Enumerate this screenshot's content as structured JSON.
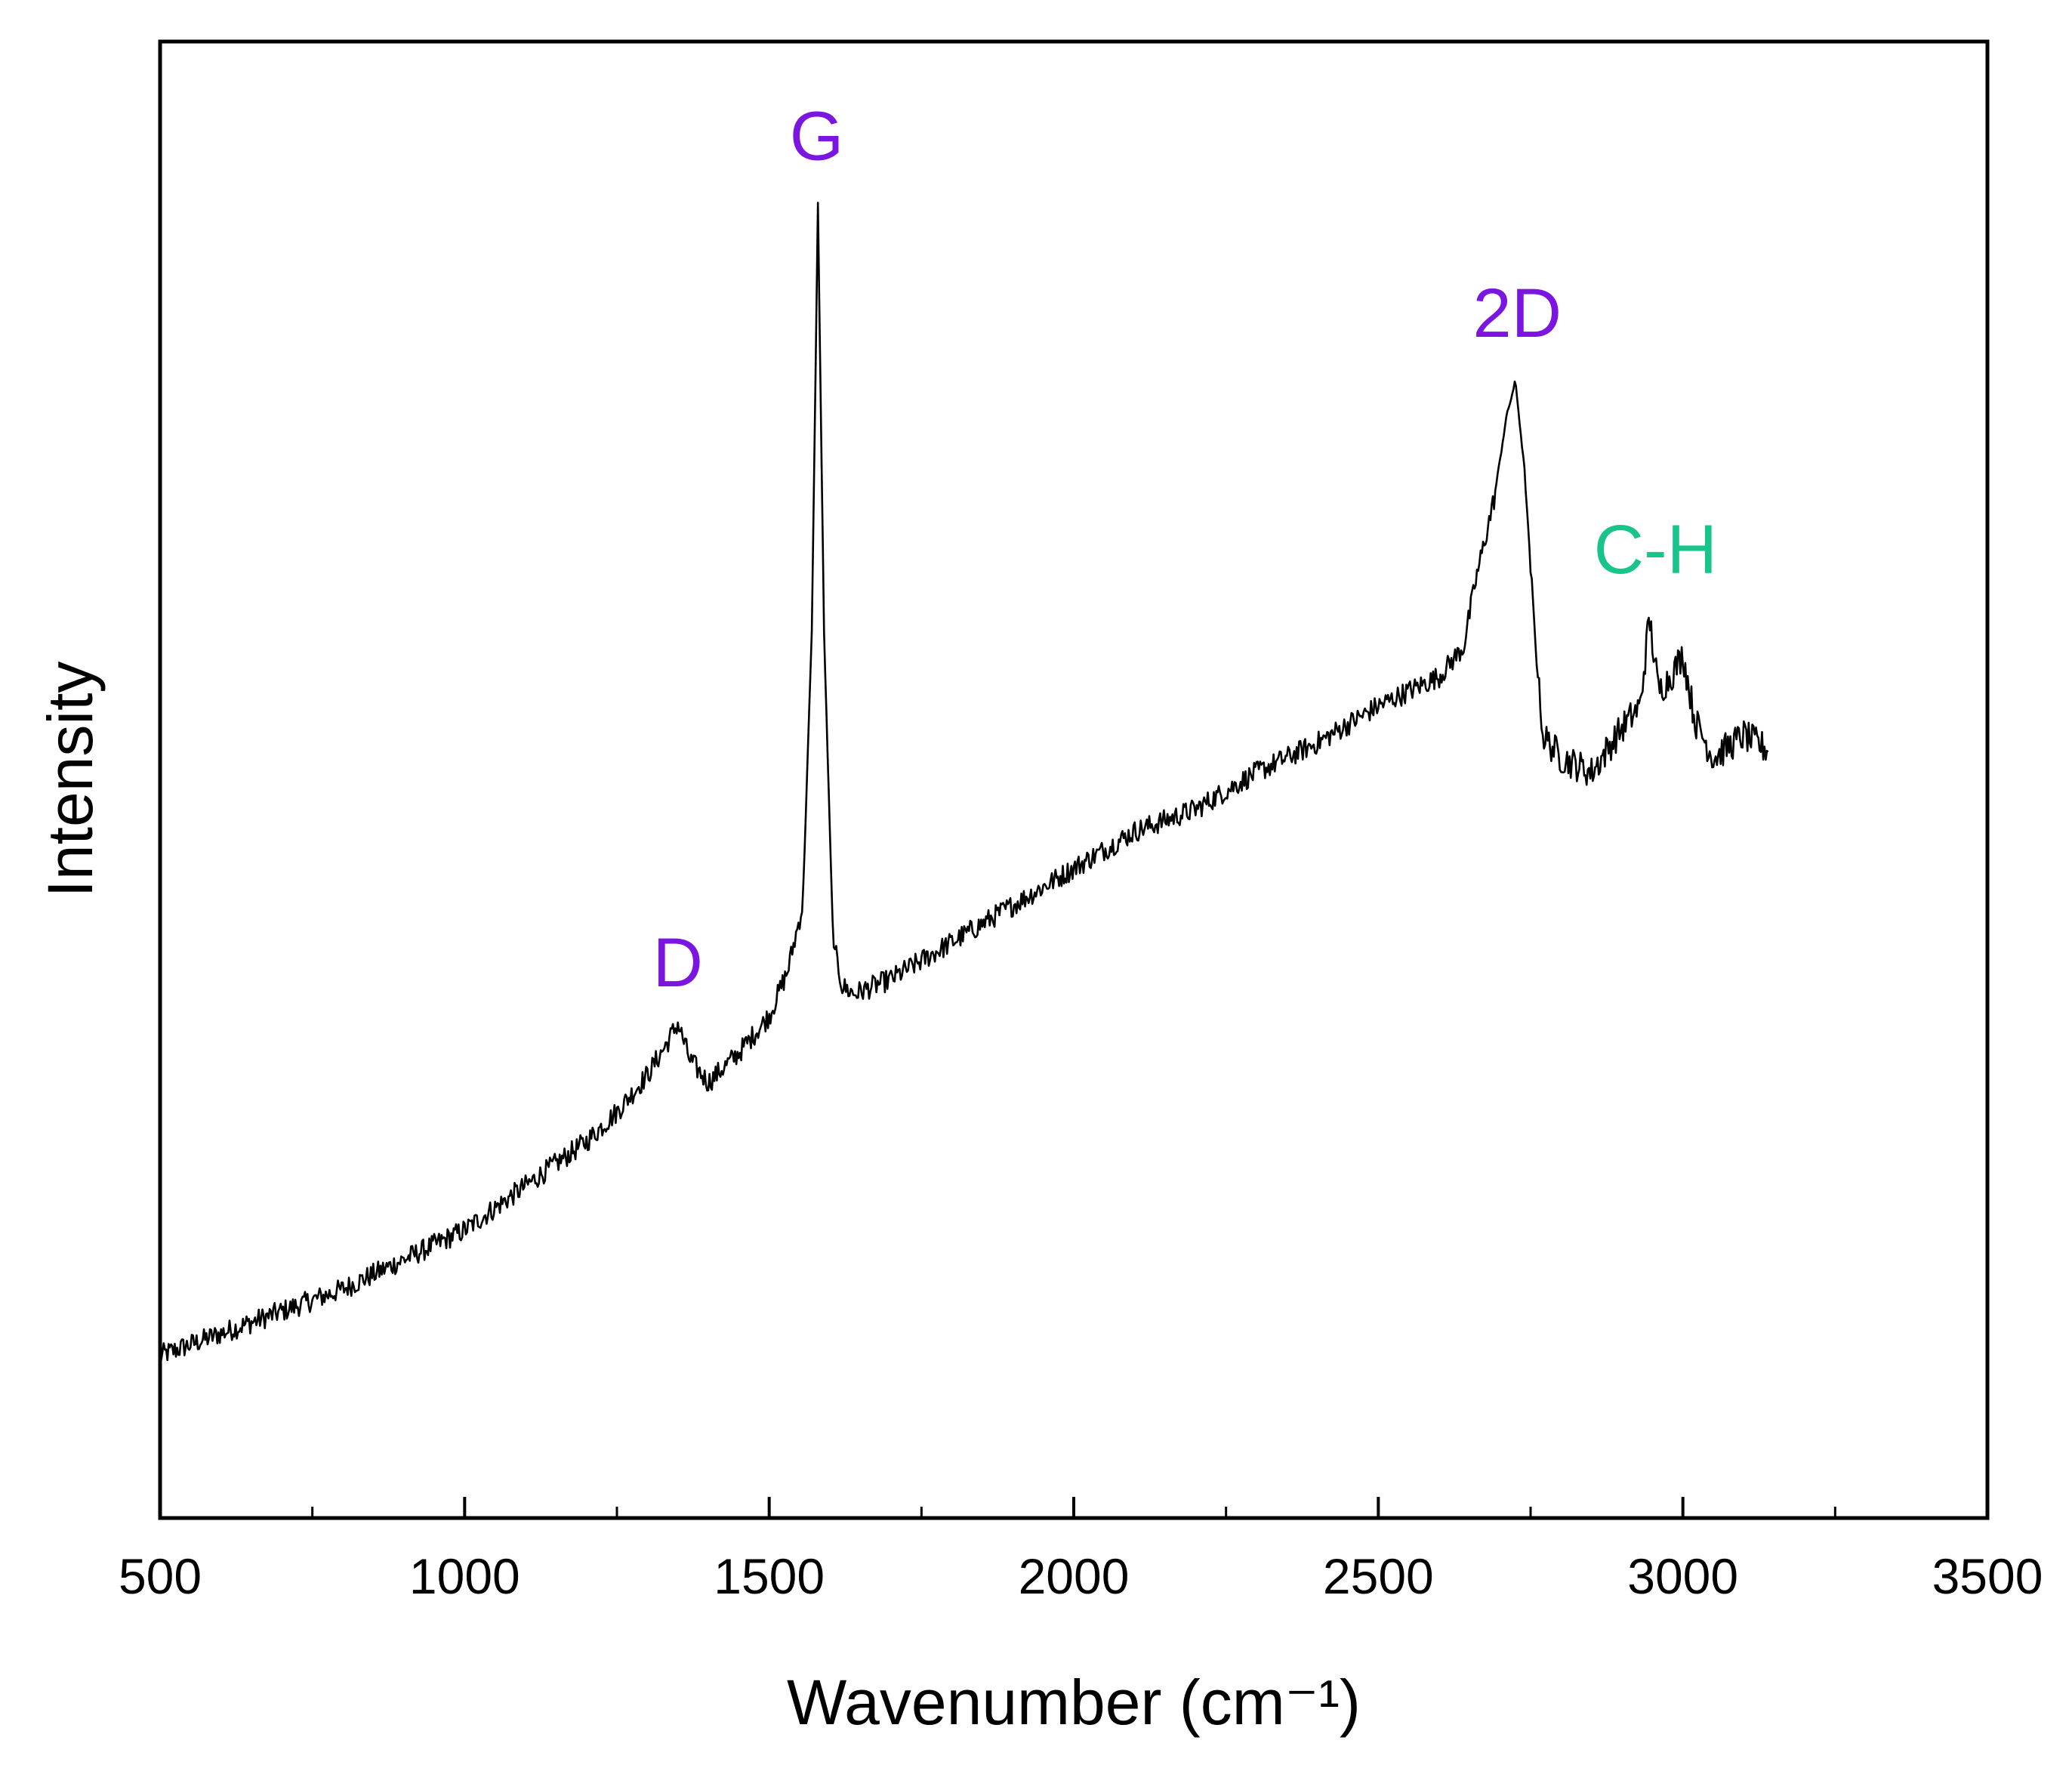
{
  "chart_data": {
    "type": "line",
    "title": "",
    "xlabel": "Wavenumber (cm⁻¹)",
    "ylabel": "Intensity",
    "xlim": [
      500,
      3500
    ],
    "ylim": [
      0,
      100
    ],
    "x_major_ticks": [
      500,
      1000,
      1500,
      2000,
      2500,
      3000,
      3500
    ],
    "x_tick_labels": [
      "500",
      "1000",
      "1500",
      "2000",
      "2500",
      "3000",
      "3500"
    ],
    "x_minor_ticks": [
      750,
      1250,
      1750,
      2250,
      2750,
      3250
    ],
    "y_tick_labels_shown": false,
    "grid": false,
    "colors": {
      "line": "#000000",
      "peak_purple": "#7b16e0",
      "peak_green": "#19c48a"
    },
    "series": [
      {
        "name": "Raman spectrum",
        "x": [
          500,
          600,
          700,
          800,
          900,
          1000,
          1100,
          1200,
          1250,
          1300,
          1330,
          1350,
          1370,
          1400,
          1450,
          1500,
          1530,
          1555,
          1570,
          1580,
          1590,
          1605,
          1620,
          1640,
          1700,
          1800,
          1900,
          2000,
          2100,
          2200,
          2300,
          2400,
          2500,
          2600,
          2640,
          2660,
          2690,
          2710,
          2725,
          2740,
          2755,
          2770,
          2800,
          2850,
          2900,
          2930,
          2945,
          2960,
          2980,
          3000,
          3020,
          3050,
          3100,
          3140
        ],
        "y": [
          11.0,
          12.5,
          14.0,
          15.5,
          17.5,
          19.5,
          22.5,
          25.5,
          27.5,
          30.0,
          32.0,
          33.5,
          31.0,
          29.5,
          31.5,
          34.0,
          37.0,
          41.5,
          60.0,
          89.0,
          60.0,
          39.0,
          36.0,
          35.5,
          36.5,
          39.0,
          41.5,
          44.0,
          46.5,
          48.0,
          50.5,
          52.5,
          55.0,
          57.0,
          59.0,
          63.5,
          69.0,
          74.5,
          77.0,
          71.0,
          61.0,
          53.0,
          51.5,
          50.5,
          53.5,
          55.0,
          61.0,
          56.0,
          57.0,
          58.5,
          54.0,
          51.5,
          53.0,
          52.0
        ]
      }
    ],
    "annotations": [
      {
        "text": "D",
        "x": 1350,
        "y": 36,
        "color": "#7b16e0"
      },
      {
        "text": "G",
        "x": 1578,
        "y": 92,
        "color": "#7b16e0"
      },
      {
        "text": "2D",
        "x": 2728,
        "y": 80,
        "color": "#7b16e0"
      },
      {
        "text": "C-H",
        "x": 2955,
        "y": 64,
        "color": "#19c48a"
      }
    ]
  }
}
